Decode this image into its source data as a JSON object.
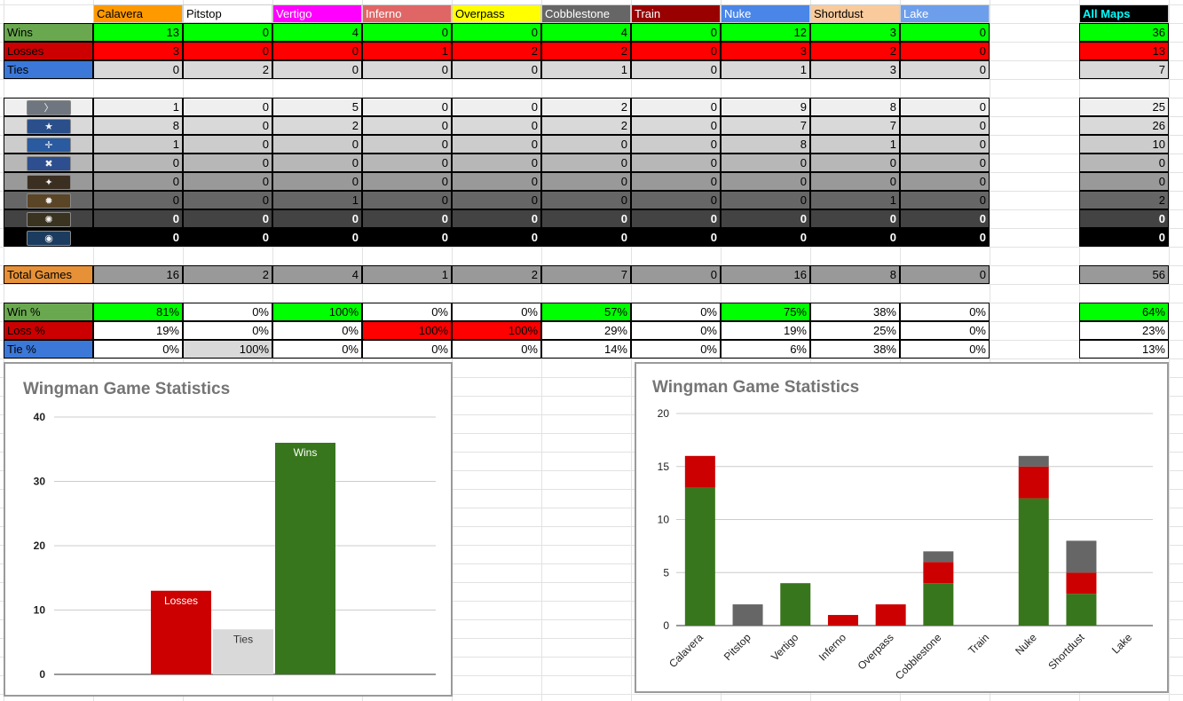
{
  "maps": [
    {
      "name": "Calavera",
      "bg": "#ff9900",
      "fg": "#000000"
    },
    {
      "name": "Pitstop",
      "bg": "#ffffff",
      "fg": "#000000"
    },
    {
      "name": "Vertigo",
      "bg": "#ff00ff",
      "fg": "#ffffff"
    },
    {
      "name": "Inferno",
      "bg": "#e06666",
      "fg": "#ffffff"
    },
    {
      "name": "Overpass",
      "bg": "#ffff00",
      "fg": "#000000"
    },
    {
      "name": "Cobblestone",
      "bg": "#666666",
      "fg": "#ffffff"
    },
    {
      "name": "Train",
      "bg": "#990000",
      "fg": "#ffffff"
    },
    {
      "name": "Nuke",
      "bg": "#4a86e8",
      "fg": "#ffffff"
    },
    {
      "name": "Shortdust",
      "bg": "#f9cb9c",
      "fg": "#000000"
    },
    {
      "name": "Lake",
      "bg": "#6d9eeb",
      "fg": "#ffffff"
    }
  ],
  "all_maps": {
    "label": "All Maps",
    "bg": "#000000",
    "fg": "#00ffff"
  },
  "results": [
    {
      "label": "Wins",
      "label_bg": "#6aa84f",
      "label_fg": "#000000",
      "values": [
        "13",
        "0",
        "4",
        "0",
        "0",
        "4",
        "0",
        "12",
        "3",
        "0"
      ],
      "total": "36"
    },
    {
      "label": "Losses",
      "label_bg": "#cc0000",
      "label_fg": "#000000",
      "values": [
        "3",
        "0",
        "0",
        "1",
        "2",
        "2",
        "0",
        "3",
        "2",
        "0"
      ],
      "total": "13"
    },
    {
      "label": "Ties",
      "label_bg": "#3c78d8",
      "label_fg": "#000000",
      "values": [
        "0",
        "2",
        "0",
        "0",
        "0",
        "1",
        "0",
        "1",
        "3",
        "0"
      ],
      "total": "7"
    }
  ],
  "result_colors": {
    "Wins": "#00ff00",
    "Losses": "#ff0000",
    "Ties": "#d9d9d9"
  },
  "ranks": [
    {
      "icon": "silver-rank-icon",
      "glyph": "〉",
      "badge": "#6f7680",
      "bg": "#efefef",
      "fg": "#000000",
      "values": [
        "1",
        "0",
        "5",
        "0",
        "0",
        "2",
        "0",
        "9",
        "8",
        "0"
      ],
      "total": "25"
    },
    {
      "icon": "gold-nova-rank-icon",
      "glyph": "★",
      "badge": "#2a4f8a",
      "bg": "#d9d9d9",
      "fg": "#000000",
      "values": [
        "8",
        "0",
        "2",
        "0",
        "0",
        "2",
        "0",
        "7",
        "7",
        "0"
      ],
      "total": "26"
    },
    {
      "icon": "master-guardian-rank-icon",
      "glyph": "✛",
      "badge": "#2a5aa0",
      "bg": "#cccccc",
      "fg": "#000000",
      "values": [
        "1",
        "0",
        "0",
        "0",
        "0",
        "0",
        "0",
        "8",
        "1",
        "0"
      ],
      "total": "10"
    },
    {
      "icon": "distinguished-master-guardian-rank-icon",
      "glyph": "✖",
      "badge": "#2d4f8f",
      "bg": "#b7b7b7",
      "fg": "#000000",
      "values": [
        "0",
        "0",
        "0",
        "0",
        "0",
        "0",
        "0",
        "0",
        "0",
        "0"
      ],
      "total": "0"
    },
    {
      "icon": "legendary-eagle-rank-icon",
      "glyph": "✦",
      "badge": "#3b2f22",
      "bg": "#999999",
      "fg": "#000000",
      "values": [
        "0",
        "0",
        "0",
        "0",
        "0",
        "0",
        "0",
        "0",
        "0",
        "0"
      ],
      "total": "0"
    },
    {
      "icon": "supreme-master-rank-icon",
      "glyph": "✹",
      "badge": "#5a4526",
      "bg": "#666666",
      "fg": "#000000",
      "values": [
        "0",
        "0",
        "1",
        "0",
        "0",
        "0",
        "0",
        "0",
        "1",
        "0"
      ],
      "total": "2"
    },
    {
      "icon": "global-elite-rank-icon",
      "glyph": "✺",
      "badge": "#3a3320",
      "bg": "#434343",
      "fg": "#ffffff",
      "values": [
        "0",
        "0",
        "0",
        "0",
        "0",
        "0",
        "0",
        "0",
        "0",
        "0"
      ],
      "total": "0"
    },
    {
      "icon": "global-elite-plus-rank-icon",
      "glyph": "◉",
      "badge": "#1b3c5f",
      "bg": "#000000",
      "fg": "#ffffff",
      "values": [
        "0",
        "0",
        "0",
        "0",
        "0",
        "0",
        "0",
        "0",
        "0",
        "0"
      ],
      "total": "0"
    }
  ],
  "total_games": {
    "label": "Total Games",
    "label_bg": "#e69138",
    "bg": "#999999",
    "values": [
      "16",
      "2",
      "4",
      "1",
      "2",
      "7",
      "0",
      "16",
      "8",
      "0"
    ],
    "total": "56"
  },
  "percent_rows": [
    {
      "label": "Win %",
      "label_bg": "#6aa84f",
      "label_fg": "#000000",
      "values": [
        "81%",
        "0%",
        "100%",
        "0%",
        "0%",
        "57%",
        "0%",
        "75%",
        "38%",
        "0%"
      ],
      "total": "64%",
      "cell_bgs": [
        "#00ff00",
        "#ffffff",
        "#00ff00",
        "#ffffff",
        "#ffffff",
        "#00ff00",
        "#ffffff",
        "#00ff00",
        "#ffffff",
        "#ffffff"
      ],
      "total_bg": "#00ff00"
    },
    {
      "label": "Loss %",
      "label_bg": "#cc0000",
      "label_fg": "#000000",
      "values": [
        "19%",
        "0%",
        "0%",
        "100%",
        "100%",
        "29%",
        "0%",
        "19%",
        "25%",
        "0%"
      ],
      "total": "23%",
      "cell_bgs": [
        "#ffffff",
        "#ffffff",
        "#ffffff",
        "#ff0000",
        "#ff0000",
        "#ffffff",
        "#ffffff",
        "#ffffff",
        "#ffffff",
        "#ffffff"
      ],
      "total_bg": "#ffffff"
    },
    {
      "label": "Tie %",
      "label_bg": "#3c78d8",
      "label_fg": "#000000",
      "values": [
        "0%",
        "100%",
        "0%",
        "0%",
        "0%",
        "14%",
        "0%",
        "6%",
        "38%",
        "0%"
      ],
      "total": "13%",
      "cell_bgs": [
        "#ffffff",
        "#d9d9d9",
        "#ffffff",
        "#ffffff",
        "#ffffff",
        "#ffffff",
        "#ffffff",
        "#ffffff",
        "#ffffff",
        "#ffffff"
      ],
      "total_bg": "#ffffff"
    }
  ],
  "chart_data": [
    {
      "type": "bar",
      "title": "Wingman Game Statistics",
      "categories": [
        "Losses",
        "Ties",
        "Wins"
      ],
      "values": [
        13,
        7,
        36
      ],
      "colors": [
        "#cc0000",
        "#d9d9d9",
        "#38761d"
      ],
      "label_colors": [
        "#ffffff",
        "#333333",
        "#ffffff"
      ],
      "ylim": [
        0,
        40
      ],
      "yticks": [
        0,
        10,
        20,
        30,
        40
      ],
      "xlabel": "",
      "ylabel": "",
      "grid": true
    },
    {
      "type": "bar",
      "stacked": true,
      "title": "Wingman Game Statistics",
      "categories": [
        "Calavera",
        "Pitstop",
        "Vertigo",
        "Inferno",
        "Overpass",
        "Cobblestone",
        "Train",
        "Nuke",
        "Shortdust",
        "Lake"
      ],
      "series": [
        {
          "values": [
            13,
            0,
            4,
            0,
            0,
            4,
            0,
            12,
            3,
            0
          ],
          "color": "#38761d"
        },
        {
          "values": [
            3,
            0,
            0,
            1,
            2,
            2,
            0,
            3,
            2,
            0
          ],
          "color": "#cc0000"
        },
        {
          "values": [
            0,
            2,
            0,
            0,
            0,
            1,
            0,
            1,
            3,
            0
          ],
          "color": "#666666"
        }
      ],
      "ylim": [
        0,
        20
      ],
      "yticks": [
        0,
        5,
        10,
        15,
        20
      ],
      "xlabel": "",
      "ylabel": "",
      "grid": true
    }
  ]
}
